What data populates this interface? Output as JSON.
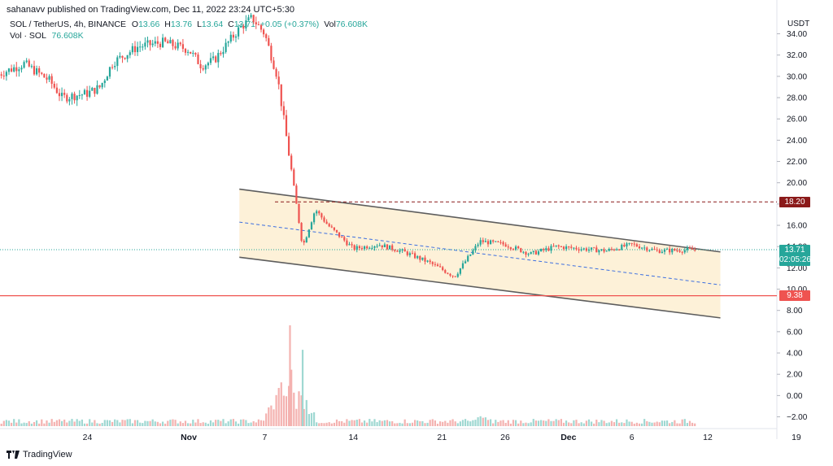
{
  "header": {
    "published": "sahanavv published on TradingView.com, Dec 11, 2022 23:24 UTC+5:30"
  },
  "legend": {
    "symbol": "SOL / TetherUS, 4h, BINANCE",
    "o_label": "O",
    "o_val": "13.66",
    "h_label": "H",
    "h_val": "13.76",
    "l_label": "L",
    "l_val": "13.64",
    "c_label": "C",
    "c_val": "13.71",
    "change": "+0.05 (+0.37%)",
    "vol_label": "Vol",
    "vol_val": "76.608K",
    "vol2_label": "Vol · SOL",
    "vol2_val": "76.608K"
  },
  "footer": {
    "brand": "TradingView"
  },
  "colors": {
    "up": "#26a69a",
    "down": "#ef5350",
    "resistance": "#8b1a1a",
    "support": "#ef5350",
    "channel_fill": "#fdf1d8",
    "channel_line": "#5d5d5d",
    "mid_line": "#3d6fe0"
  },
  "chart_data": {
    "type": "candlestick",
    "title": "SOL / TetherUS, 4h, BINANCE",
    "ylabel": "USDT",
    "y_ticks": [
      "34.00",
      "32.00",
      "30.00",
      "28.00",
      "26.00",
      "24.00",
      "22.00",
      "20.00",
      "18.00",
      "16.00",
      "14.00",
      "12.00",
      "10.00",
      "8.00",
      "6.00",
      "4.00",
      "2.00",
      "0.00",
      "−2.00"
    ],
    "x_ticks": [
      "7",
      "24",
      "Nov",
      "7",
      "14",
      "21",
      "26",
      "Dec",
      "6",
      "12",
      "19"
    ],
    "ylim": [
      -2.8,
      35.8
    ],
    "price_labels": [
      {
        "name": "resistance",
        "value": "18.20"
      },
      {
        "name": "last-price",
        "value": "13.71",
        "countdown": "02:05:26"
      },
      {
        "name": "support",
        "value": "9.38"
      }
    ],
    "horizontal_levels": {
      "resistance": 18.2,
      "last_price": 13.71,
      "support": 9.38
    },
    "channel": {
      "upper": [
        {
          "date": "Nov 5",
          "y": 19.4
        },
        {
          "date": "Dec 13",
          "y": 13.5
        }
      ],
      "lower": [
        {
          "date": "Nov 5",
          "y": 13.0
        },
        {
          "date": "Dec 13",
          "y": 7.3
        }
      ],
      "mid": [
        {
          "date": "Nov 5",
          "y": 16.3
        },
        {
          "date": "Dec 13",
          "y": 10.4
        }
      ]
    },
    "price_path": [
      {
        "date": "Oct 17",
        "y": 30.2
      },
      {
        "date": "Oct 19",
        "y": 31.2
      },
      {
        "date": "Oct 21",
        "y": 29.6
      },
      {
        "date": "Oct 22",
        "y": 28.0
      },
      {
        "date": "Oct 24",
        "y": 28.4
      },
      {
        "date": "Oct 25",
        "y": 29.0
      },
      {
        "date": "Oct 26",
        "y": 31.3
      },
      {
        "date": "Oct 28",
        "y": 32.8
      },
      {
        "date": "Oct 30",
        "y": 33.2
      },
      {
        "date": "Nov 1",
        "y": 32.5
      },
      {
        "date": "Nov 2",
        "y": 31.0
      },
      {
        "date": "Nov 3",
        "y": 31.5
      },
      {
        "date": "Nov 5",
        "y": 34.5
      },
      {
        "date": "Nov 6",
        "y": 35.5
      },
      {
        "date": "Nov 7",
        "y": 34.0
      },
      {
        "date": "Nov 8",
        "y": 30.0
      },
      {
        "date": "Nov 9",
        "y": 22.0
      },
      {
        "date": "Nov 10",
        "y": 14.0
      },
      {
        "date": "Nov 11",
        "y": 17.5
      },
      {
        "date": "Nov 12",
        "y": 16.0
      },
      {
        "date": "Nov 14",
        "y": 13.8
      },
      {
        "date": "Nov 16",
        "y": 14.2
      },
      {
        "date": "Nov 18",
        "y": 13.5
      },
      {
        "date": "Nov 20",
        "y": 12.5
      },
      {
        "date": "Nov 22",
        "y": 11.2
      },
      {
        "date": "Nov 24",
        "y": 14.5
      },
      {
        "date": "Nov 26",
        "y": 14.2
      },
      {
        "date": "Nov 28",
        "y": 13.3
      },
      {
        "date": "Nov 30",
        "y": 14.0
      },
      {
        "date": "Dec 2",
        "y": 13.8
      },
      {
        "date": "Dec 4",
        "y": 13.6
      },
      {
        "date": "Dec 6",
        "y": 14.2
      },
      {
        "date": "Dec 8",
        "y": 13.6
      },
      {
        "date": "Dec 11",
        "y": 13.71
      }
    ],
    "volume_spikes": [
      {
        "date": "Nov 9",
        "value": 6.6,
        "direction": "down"
      },
      {
        "date": "Nov 10",
        "value": 4.3,
        "direction": "up"
      }
    ]
  }
}
